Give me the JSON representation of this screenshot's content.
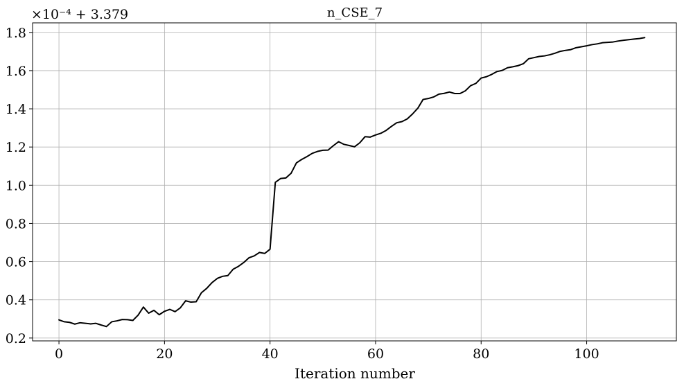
{
  "chart_data": {
    "type": "line",
    "title": "n_CSE_7",
    "xlabel": "Iteration number",
    "ylabel": "",
    "offset_label": "×10⁻⁴ + 3.379",
    "offset_value": 3.379,
    "scale_factor": 0.0001,
    "xlim": [
      -5,
      117
    ],
    "ylim": [
      0.185,
      1.85
    ],
    "xticks": [
      0,
      20,
      40,
      60,
      80,
      100
    ],
    "xtick_labels": [
      "0",
      "20",
      "40",
      "60",
      "80",
      "100"
    ],
    "yticks": [
      0.2,
      0.4,
      0.6,
      0.8,
      1.0,
      1.2,
      1.4,
      1.6,
      1.8
    ],
    "ytick_labels": [
      "0.2",
      "0.4",
      "0.6",
      "0.8",
      "1.0",
      "1.2",
      "1.4",
      "1.6",
      "1.8"
    ],
    "grid": true,
    "line_color": "#000000",
    "grid_color": "#b0b0b0",
    "series": [
      {
        "x": [
          0,
          1,
          2,
          3,
          4,
          5,
          6,
          7,
          8,
          9,
          10,
          11,
          12,
          13,
          14,
          15,
          16,
          17,
          18,
          19,
          20,
          21,
          22,
          23,
          24,
          25,
          26,
          27,
          28,
          29,
          30,
          31,
          32,
          33,
          34,
          35,
          36,
          37,
          38,
          39,
          40,
          41,
          42,
          43,
          44,
          45,
          46,
          47,
          48,
          49,
          50,
          51,
          52,
          53,
          54,
          55,
          56,
          57,
          58,
          59,
          60,
          61,
          62,
          63,
          64,
          65,
          66,
          67,
          68,
          69,
          70,
          71,
          72,
          73,
          74,
          75,
          76,
          77,
          78,
          79,
          80,
          81,
          82,
          83,
          84,
          85,
          86,
          87,
          88,
          89,
          90,
          91,
          92,
          93,
          94,
          95,
          96,
          97,
          98,
          99,
          100,
          101,
          102,
          103,
          104,
          105,
          106,
          107,
          108,
          109,
          110,
          111
        ],
        "values": [
          0.295,
          0.285,
          0.282,
          0.273,
          0.28,
          0.277,
          0.274,
          0.277,
          0.268,
          0.26,
          0.285,
          0.29,
          0.297,
          0.296,
          0.292,
          0.32,
          0.362,
          0.33,
          0.345,
          0.322,
          0.34,
          0.35,
          0.338,
          0.358,
          0.395,
          0.388,
          0.39,
          0.437,
          0.46,
          0.49,
          0.512,
          0.523,
          0.527,
          0.56,
          0.575,
          0.595,
          0.62,
          0.63,
          0.648,
          0.643,
          0.665,
          1.015,
          1.035,
          1.038,
          1.063,
          1.117,
          1.135,
          1.15,
          1.167,
          1.177,
          1.183,
          1.184,
          1.207,
          1.228,
          1.214,
          1.208,
          1.201,
          1.222,
          1.254,
          1.252,
          1.263,
          1.272,
          1.287,
          1.308,
          1.327,
          1.333,
          1.347,
          1.373,
          1.403,
          1.449,
          1.454,
          1.462,
          1.477,
          1.481,
          1.488,
          1.48,
          1.48,
          1.494,
          1.521,
          1.533,
          1.561,
          1.568,
          1.58,
          1.595,
          1.601,
          1.615,
          1.62,
          1.626,
          1.636,
          1.662,
          1.668,
          1.674,
          1.677,
          1.683,
          1.691,
          1.701,
          1.706,
          1.71,
          1.72,
          1.725,
          1.73,
          1.736,
          1.74,
          1.746,
          1.748,
          1.75,
          1.755,
          1.759,
          1.762,
          1.765,
          1.768,
          1.773
        ]
      }
    ]
  }
}
